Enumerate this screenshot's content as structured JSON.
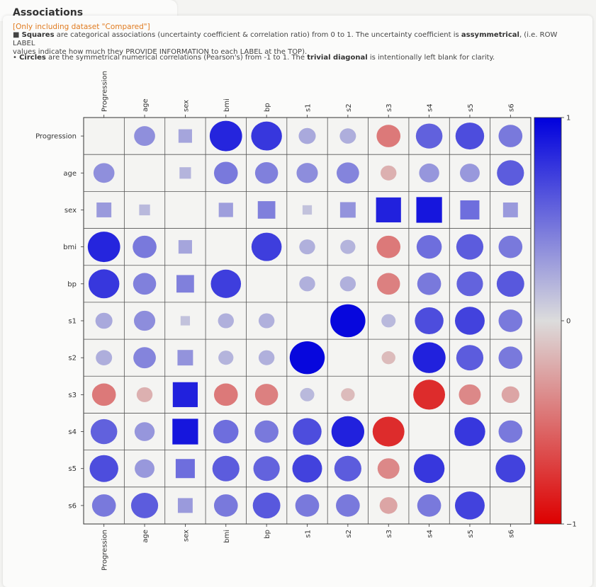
{
  "header": {
    "title": "Associations",
    "subtitle": "[Only including dataset \"Compared\"]",
    "line1_sym": "■ ",
    "line1_b1": "Squares",
    "line1_t1": " are categorical associations (uncertainty coefficient & correlation ratio) from 0 to 1. The uncertainty coefficient is ",
    "line1_b2": "assymmetrical",
    "line1_t2": ", (i.e. ROW LABEL",
    "line2": "values indicate how much they PROVIDE INFORMATION to each LABEL at the TOP).",
    "line3_sym": "• ",
    "line3_b1": "Circles",
    "line3_t1": " are the symmetrical numerical correlations (Pearson's) from -1 to 1. The ",
    "line3_b2": "trivial diagonal",
    "line3_t2": " is intentionally left blank for clarity."
  },
  "chart_data": {
    "type": "heatmap",
    "labels": [
      "Progression",
      "age",
      "sex",
      "bmi",
      "bp",
      "s1",
      "s2",
      "s3",
      "s4",
      "s5",
      "s6"
    ],
    "categorical": [
      "sex"
    ],
    "values": [
      [
        null,
        0.35,
        0.25,
        0.83,
        0.75,
        0.23,
        0.21,
        -0.45,
        0.56,
        0.65,
        0.45
      ],
      [
        0.35,
        null,
        0.18,
        0.45,
        0.42,
        0.36,
        0.4,
        -0.2,
        0.32,
        0.31,
        0.58
      ],
      [
        0.3,
        0.16,
        null,
        0.28,
        0.42,
        0.12,
        0.33,
        0.85,
        0.9,
        0.5,
        0.3
      ],
      [
        0.83,
        0.45,
        0.25,
        null,
        0.72,
        0.2,
        0.18,
        -0.45,
        0.5,
        0.58,
        0.45
      ],
      [
        0.75,
        0.42,
        0.42,
        0.72,
        null,
        0.2,
        0.2,
        -0.42,
        0.45,
        0.55,
        0.6
      ],
      [
        0.23,
        0.36,
        0.12,
        0.2,
        0.2,
        null,
        0.97,
        0.16,
        0.65,
        0.7,
        0.45
      ],
      [
        0.21,
        0.4,
        0.33,
        0.18,
        0.2,
        0.97,
        null,
        -0.15,
        0.85,
        0.58,
        0.45
      ],
      [
        -0.45,
        -0.2,
        0.85,
        -0.45,
        -0.42,
        0.16,
        -0.15,
        null,
        -0.8,
        -0.38,
        -0.25
      ],
      [
        0.56,
        0.32,
        0.9,
        0.5,
        0.45,
        0.65,
        0.85,
        -0.8,
        null,
        0.75,
        0.45
      ],
      [
        0.65,
        0.31,
        0.5,
        0.58,
        0.55,
        0.7,
        0.58,
        -0.38,
        0.75,
        null,
        0.7
      ],
      [
        0.45,
        0.58,
        0.3,
        0.45,
        0.6,
        0.45,
        0.45,
        -0.25,
        0.45,
        0.7,
        null
      ]
    ],
    "colorbar": {
      "min": -1,
      "max": 1,
      "ticks": [
        "1",
        "0",
        "−1"
      ],
      "min_color": "#dd0000",
      "mid_color": "#dcdcdc",
      "max_color": "#0000dd"
    },
    "grid": true
  }
}
